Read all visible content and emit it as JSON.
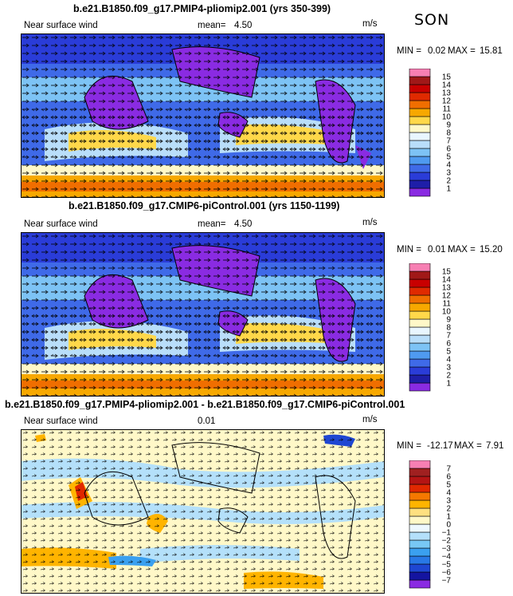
{
  "season": "SON",
  "chart_data": [
    {
      "type": "heatmap",
      "title": "b.e21.B1850.f09_g17.PMIP4-pliomip2.001 (yrs 350-399)",
      "variable": "Near surface wind",
      "mean_label": "mean=",
      "mean_value": "4.50",
      "units": "m/s",
      "min_label": "MIN =",
      "min": "0.02",
      "max_label": "MAX =",
      "max": "15.81",
      "colorbar": {
        "levels": [
          "1",
          "2",
          "3",
          "4",
          "5",
          "6",
          "7",
          "8",
          "9",
          "10",
          "11",
          "12",
          "13",
          "14",
          "15"
        ],
        "colors": [
          "#8a2be2",
          "#1e1ea8",
          "#2a3cd8",
          "#3f6ae8",
          "#4f9af0",
          "#7dc3f5",
          "#b9defa",
          "#e9f6ff",
          "#fff8c8",
          "#ffd84a",
          "#f7a800",
          "#f06e00",
          "#e02a00",
          "#c80000",
          "#a01818",
          "#f77fb3"
        ]
      }
    },
    {
      "type": "heatmap",
      "title": "b.e21.B1850.f09_g17.CMIP6-piControl.001 (yrs 1150-1199)",
      "variable": "Near surface wind",
      "mean_label": "mean=",
      "mean_value": "4.50",
      "units": "m/s",
      "min_label": "MIN =",
      "min": "0.01",
      "max_label": "MAX =",
      "max": "15.20",
      "colorbar": {
        "levels": [
          "1",
          "2",
          "3",
          "4",
          "5",
          "6",
          "7",
          "8",
          "9",
          "10",
          "11",
          "12",
          "13",
          "14",
          "15"
        ],
        "colors": [
          "#8a2be2",
          "#1e1ea8",
          "#2a3cd8",
          "#3f6ae8",
          "#4f9af0",
          "#7dc3f5",
          "#b9defa",
          "#e9f6ff",
          "#fff8c8",
          "#ffd84a",
          "#f7a800",
          "#f06e00",
          "#e02a00",
          "#c80000",
          "#a01818",
          "#f77fb3"
        ]
      }
    },
    {
      "type": "heatmap",
      "title": "b.e21.B1850.f09_g17.PMIP4-pliomip2.001 - b.e21.B1850.f09_g17.CMIP6-piControl.001",
      "variable": "Near surface wind",
      "mean_label": "",
      "mean_value": "0.01",
      "units": "m/s",
      "min_label": "MIN =",
      "min": "-12.17",
      "max_label": "MAX =",
      "max": "7.91",
      "colorbar": {
        "levels": [
          "−7",
          "−6",
          "−5",
          "−4",
          "−3",
          "−2",
          "−1",
          "0",
          "1",
          "2",
          "3",
          "4",
          "5",
          "6",
          "7"
        ],
        "colors": [
          "#8a2be2",
          "#1414a0",
          "#1e46d2",
          "#2878e6",
          "#3aa0f0",
          "#78c8f5",
          "#b4e0fa",
          "#eef8ff",
          "#fff8c8",
          "#ffe080",
          "#ffb400",
          "#f57800",
          "#e02800",
          "#b41414",
          "#a02020",
          "#f77fb3"
        ]
      }
    }
  ]
}
